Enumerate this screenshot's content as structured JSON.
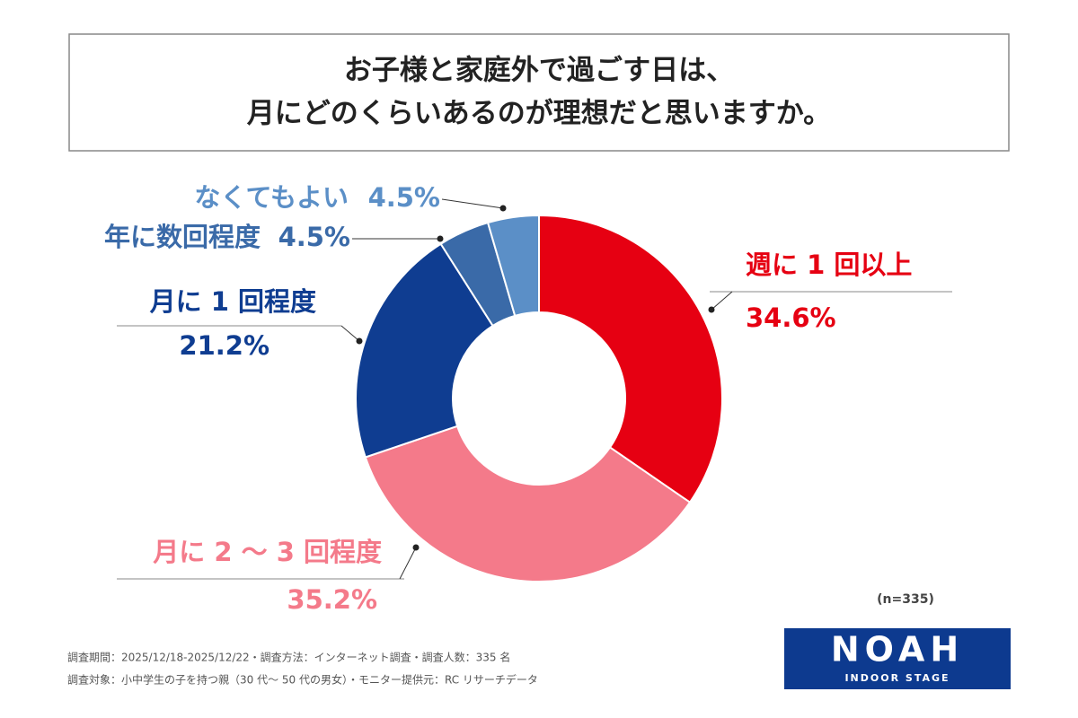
{
  "title": [
    "お子様と家庭外で過ごす日は、",
    "月にどのくらいあるのが理想だと思いますか。"
  ],
  "chart_data": {
    "type": "donut",
    "categories": [
      "週に 1 回以上",
      "月に 2 ～ 3 回程度",
      "月に 1 回程度",
      "年に数回程度",
      "なくてもよい"
    ],
    "values": [
      34.6,
      35.2,
      21.2,
      4.5,
      4.5
    ],
    "value_labels": [
      "34.6%",
      "35.2%",
      "21.2%",
      "4.5%",
      "4.5%"
    ],
    "colors": [
      "#e60012",
      "#f47a8a",
      "#0f3d91",
      "#3a6aa8",
      "#5b8fc7"
    ]
  },
  "sample_note": "(n=335)",
  "footnotes": [
    "調査期間：2025/12/18-2025/12/22・調査方法：インターネット調査・調査人数：335 名",
    "調査対象：小中学生の子を持つ親（30 代～ 50 代の男女）・モニター提供元：RC リサーチデータ"
  ],
  "logo": {
    "name": "NOAH",
    "subtitle": "INDOOR STAGE"
  }
}
